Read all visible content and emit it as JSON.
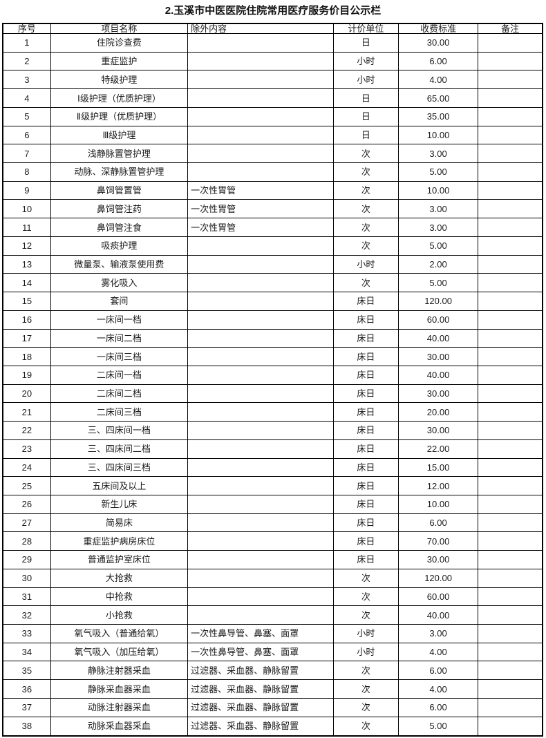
{
  "title": "2.玉溪市中医医院住院常用医疗服务价目公示栏",
  "table": {
    "columns": [
      {
        "key": "no",
        "label": "序号"
      },
      {
        "key": "name",
        "label": "项目名称"
      },
      {
        "key": "exclusion",
        "label": "除外内容"
      },
      {
        "key": "unit",
        "label": "计价单位"
      },
      {
        "key": "price",
        "label": "收费标准"
      },
      {
        "key": "note",
        "label": "备注"
      }
    ],
    "rows": [
      {
        "no": "1",
        "name": "住院诊查费",
        "exclusion": "",
        "unit": "日",
        "price": "30.00",
        "note": ""
      },
      {
        "no": "2",
        "name": "重症监护",
        "exclusion": "",
        "unit": "小时",
        "price": "6.00",
        "note": ""
      },
      {
        "no": "3",
        "name": "特级护理",
        "exclusion": "",
        "unit": "小时",
        "price": "4.00",
        "note": ""
      },
      {
        "no": "4",
        "name": "Ⅰ级护理（优质护理）",
        "exclusion": "",
        "unit": "日",
        "price": "65.00",
        "note": ""
      },
      {
        "no": "5",
        "name": "Ⅱ级护理（优质护理）",
        "exclusion": "",
        "unit": "日",
        "price": "35.00",
        "note": ""
      },
      {
        "no": "6",
        "name": "Ⅲ级护理",
        "exclusion": "",
        "unit": "日",
        "price": "10.00",
        "note": ""
      },
      {
        "no": "7",
        "name": "浅静脉置管护理",
        "exclusion": "",
        "unit": "次",
        "price": "3.00",
        "note": ""
      },
      {
        "no": "8",
        "name": "动脉、深静脉置管护理",
        "exclusion": "",
        "unit": "次",
        "price": "5.00",
        "note": ""
      },
      {
        "no": "9",
        "name": "鼻饲管置管",
        "exclusion": "一次性胃管",
        "unit": "次",
        "price": "10.00",
        "note": ""
      },
      {
        "no": "10",
        "name": "鼻饲管注药",
        "exclusion": "一次性胃管",
        "unit": "次",
        "price": "3.00",
        "note": ""
      },
      {
        "no": "11",
        "name": "鼻饲管注食",
        "exclusion": "一次性胃管",
        "unit": "次",
        "price": "3.00",
        "note": ""
      },
      {
        "no": "12",
        "name": "吸痰护理",
        "exclusion": "",
        "unit": "次",
        "price": "5.00",
        "note": ""
      },
      {
        "no": "13",
        "name": "微量泵、输液泵使用费",
        "exclusion": "",
        "unit": "小时",
        "price": "2.00",
        "note": ""
      },
      {
        "no": "14",
        "name": "雾化吸入",
        "exclusion": "",
        "unit": "次",
        "price": "5.00",
        "note": ""
      },
      {
        "no": "15",
        "name": "套间",
        "exclusion": "",
        "unit": "床日",
        "price": "120.00",
        "note": ""
      },
      {
        "no": "16",
        "name": "一床间一档",
        "exclusion": "",
        "unit": "床日",
        "price": "60.00",
        "note": ""
      },
      {
        "no": "17",
        "name": "一床间二档",
        "exclusion": "",
        "unit": "床日",
        "price": "40.00",
        "note": ""
      },
      {
        "no": "18",
        "name": "一床间三档",
        "exclusion": "",
        "unit": "床日",
        "price": "30.00",
        "note": ""
      },
      {
        "no": "19",
        "name": "二床间一档",
        "exclusion": "",
        "unit": "床日",
        "price": "40.00",
        "note": ""
      },
      {
        "no": "20",
        "name": "二床间二档",
        "exclusion": "",
        "unit": "床日",
        "price": "30.00",
        "note": ""
      },
      {
        "no": "21",
        "name": "二床间三档",
        "exclusion": "",
        "unit": "床日",
        "price": "20.00",
        "note": ""
      },
      {
        "no": "22",
        "name": "三、四床间一档",
        "exclusion": "",
        "unit": "床日",
        "price": "30.00",
        "note": ""
      },
      {
        "no": "23",
        "name": "三、四床间二档",
        "exclusion": "",
        "unit": "床日",
        "price": "22.00",
        "note": ""
      },
      {
        "no": "24",
        "name": "三、四床间三档",
        "exclusion": "",
        "unit": "床日",
        "price": "15.00",
        "note": ""
      },
      {
        "no": "25",
        "name": "五床间及以上",
        "exclusion": "",
        "unit": "床日",
        "price": "12.00",
        "note": ""
      },
      {
        "no": "26",
        "name": "新生儿床",
        "exclusion": "",
        "unit": "床日",
        "price": "10.00",
        "note": ""
      },
      {
        "no": "27",
        "name": "简易床",
        "exclusion": "",
        "unit": "床日",
        "price": "6.00",
        "note": ""
      },
      {
        "no": "28",
        "name": "重症监护病房床位",
        "exclusion": "",
        "unit": "床日",
        "price": "70.00",
        "note": ""
      },
      {
        "no": "29",
        "name": "普通监护室床位",
        "exclusion": "",
        "unit": "床日",
        "price": "30.00",
        "note": ""
      },
      {
        "no": "30",
        "name": "大抢救",
        "exclusion": "",
        "unit": "次",
        "price": "120.00",
        "note": ""
      },
      {
        "no": "31",
        "name": "中抢救",
        "exclusion": "",
        "unit": "次",
        "price": "60.00",
        "note": ""
      },
      {
        "no": "32",
        "name": "小抢救",
        "exclusion": "",
        "unit": "次",
        "price": "40.00",
        "note": ""
      },
      {
        "no": "33",
        "name": "氧气吸入（普通给氧）",
        "exclusion": "一次性鼻导管、鼻塞、面罩",
        "unit": "小时",
        "price": "3.00",
        "note": ""
      },
      {
        "no": "34",
        "name": "氧气吸入（加压给氧）",
        "exclusion": "一次性鼻导管、鼻塞、面罩",
        "unit": "小时",
        "price": "4.00",
        "note": ""
      },
      {
        "no": "35",
        "name": "静脉注射器采血",
        "exclusion": "过滤器、采血器、静脉留置",
        "unit": "次",
        "price": "6.00",
        "note": ""
      },
      {
        "no": "36",
        "name": "静脉采血器采血",
        "exclusion": "过滤器、采血器、静脉留置",
        "unit": "次",
        "price": "4.00",
        "note": ""
      },
      {
        "no": "37",
        "name": "动脉注射器采血",
        "exclusion": "过滤器、采血器、静脉留置",
        "unit": "次",
        "price": "6.00",
        "note": ""
      },
      {
        "no": "38",
        "name": "动脉采血器采血",
        "exclusion": "过滤器、采血器、静脉留置",
        "unit": "次",
        "price": "5.00",
        "note": ""
      }
    ]
  }
}
